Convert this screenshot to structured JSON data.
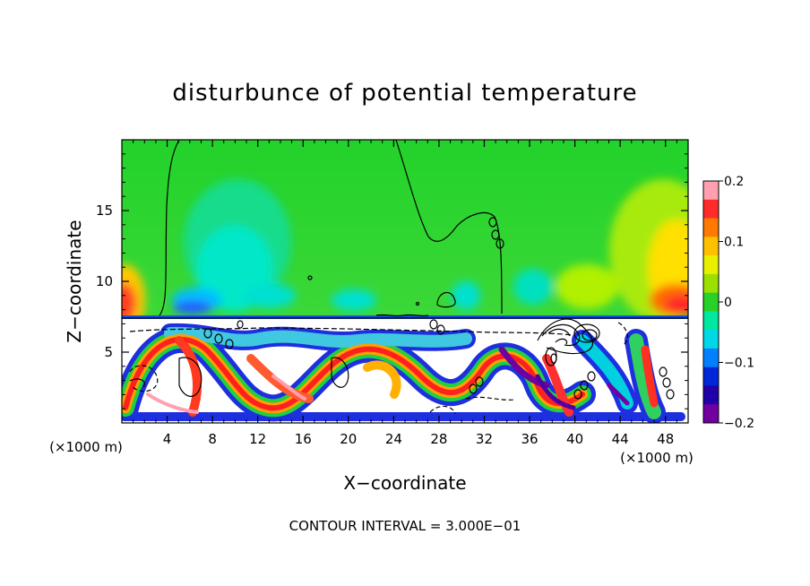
{
  "chart_data": {
    "type": "heatmap",
    "title": "disturbunce of potential temperature",
    "xlabel": "X−coordinate",
    "ylabel": "Z−coordinate",
    "x_unit_left": "(×1000 m)",
    "x_unit_right": "(×1000 m)",
    "xlim": [
      0,
      50
    ],
    "ylim": [
      0,
      20
    ],
    "x_ticks": [
      4,
      8,
      12,
      16,
      20,
      24,
      28,
      32,
      36,
      40,
      44,
      48
    ],
    "x_tick_labels": [
      "4",
      "8",
      "12",
      "16",
      "20",
      "24",
      "28",
      "32",
      "36",
      "40",
      "44",
      "48"
    ],
    "y_ticks": [
      5,
      10,
      15
    ],
    "y_tick_labels": [
      "5",
      "10",
      "15"
    ],
    "colorbar": {
      "range": [
        -0.2,
        0.2
      ],
      "tick_values": [
        0.2,
        0.1,
        0,
        -0.1,
        -0.2
      ],
      "tick_labels": [
        "0.2",
        "0.1",
        "0",
        "−0.1",
        "−0.2"
      ],
      "colors": [
        "#ff9fb0",
        "#ff2a2a",
        "#ff7a00",
        "#ffc000",
        "#e8f000",
        "#9be000",
        "#28d028",
        "#00e8a0",
        "#00d8e8",
        "#0080ff",
        "#0028d8",
        "#2000a8",
        "#7000a0"
      ]
    },
    "note": "CONTOUR INTERVAL = 3.000E−01",
    "contour_interval": 0.3,
    "grid": false
  }
}
